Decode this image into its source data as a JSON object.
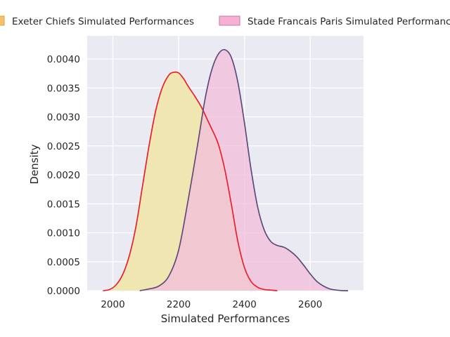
{
  "chart_data": {
    "type": "area",
    "title": "",
    "xlabel": "Simulated Performances",
    "ylabel": "Density",
    "xlim": [
      1922,
      2762
    ],
    "ylim": [
      0,
      0.0044
    ],
    "x_ticks": [
      2000,
      2200,
      2400,
      2600
    ],
    "x_tick_labels": [
      "2000",
      "2200",
      "2400",
      "2600"
    ],
    "y_ticks": [
      0,
      0.0005,
      0.001,
      0.0015,
      0.002,
      0.0025,
      0.003,
      0.0035,
      0.004
    ],
    "y_tick_labels": [
      "0.0000",
      "0.0005",
      "0.0010",
      "0.0015",
      "0.0020",
      "0.0025",
      "0.0030",
      "0.0035",
      "0.0040"
    ],
    "grid": true,
    "legend_position": "top",
    "series": [
      {
        "name": "Exeter Chiefs Simulated Performances",
        "fill_color": "#f0e6b2",
        "line_color": "#e8202a",
        "legend_color": "#f5c26b",
        "x": [
          1970,
          1990,
          2010,
          2030,
          2050,
          2070,
          2090,
          2110,
          2130,
          2150,
          2170,
          2185,
          2200,
          2215,
          2230,
          2250,
          2270,
          2290,
          2300,
          2320,
          2340,
          2360,
          2380,
          2400,
          2420,
          2440,
          2460,
          2480,
          2500
        ],
        "y": [
          0.0,
          2e-05,
          0.0001,
          0.00028,
          0.0006,
          0.0011,
          0.0018,
          0.0025,
          0.0031,
          0.0035,
          0.00372,
          0.00377,
          0.00376,
          0.00366,
          0.00352,
          0.00335,
          0.00316,
          0.00292,
          0.0028,
          0.00254,
          0.0021,
          0.0015,
          0.00085,
          0.0004,
          0.00016,
          6e-05,
          2e-05,
          1e-05,
          0.0
        ]
      },
      {
        "name": "Stade Francais Paris Simulated Performances",
        "fill_color": "#f1bedb",
        "line_color": "#5e4a7b",
        "legend_color": "#f8afd4",
        "x": [
          2082,
          2110,
          2140,
          2170,
          2200,
          2230,
          2260,
          2280,
          2300,
          2320,
          2340,
          2360,
          2380,
          2400,
          2420,
          2440,
          2460,
          2480,
          2500,
          2520,
          2540,
          2560,
          2580,
          2600,
          2620,
          2640,
          2660,
          2680,
          2700,
          2715
        ],
        "y": [
          0.0,
          3e-05,
          8e-05,
          0.00025,
          0.0007,
          0.0016,
          0.0026,
          0.0033,
          0.0038,
          0.00408,
          0.00416,
          0.00403,
          0.0036,
          0.0029,
          0.0021,
          0.00145,
          0.00105,
          0.00085,
          0.00078,
          0.00075,
          0.00068,
          0.00058,
          0.00044,
          0.00029,
          0.00016,
          8e-05,
          3e-05,
          1e-05,
          0.0,
          0.0
        ]
      }
    ]
  }
}
